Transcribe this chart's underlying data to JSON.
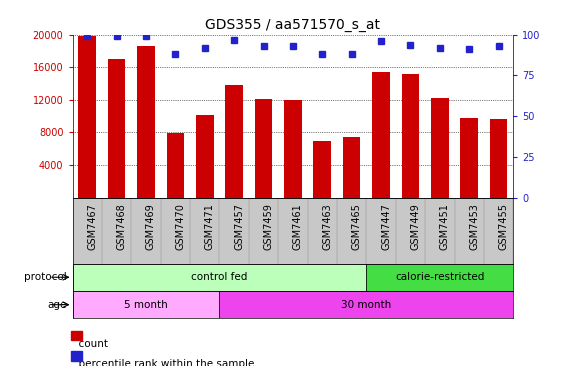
{
  "title": "GDS355 / aa571570_s_at",
  "samples": [
    "GSM7467",
    "GSM7468",
    "GSM7469",
    "GSM7470",
    "GSM7471",
    "GSM7457",
    "GSM7459",
    "GSM7461",
    "GSM7463",
    "GSM7465",
    "GSM7447",
    "GSM7449",
    "GSM7451",
    "GSM7453",
    "GSM7455"
  ],
  "counts": [
    19800,
    17000,
    18600,
    7900,
    10200,
    13800,
    12100,
    12000,
    7000,
    7400,
    15400,
    15200,
    12200,
    9800,
    9700
  ],
  "percentiles": [
    99,
    99,
    99,
    88,
    92,
    97,
    93,
    93,
    88,
    88,
    96,
    94,
    92,
    91,
    93
  ],
  "bar_color": "#cc0000",
  "dot_color": "#2222cc",
  "ylim_left": [
    0,
    20000
  ],
  "ylim_right": [
    0,
    100
  ],
  "yticks_left": [
    4000,
    8000,
    12000,
    16000,
    20000
  ],
  "yticks_right": [
    0,
    25,
    50,
    75,
    100
  ],
  "protocol_spans": [
    {
      "label": "control fed",
      "start": 0,
      "end": 10,
      "color": "#bbffbb"
    },
    {
      "label": "calorie-restricted",
      "start": 10,
      "end": 15,
      "color": "#44dd44"
    }
  ],
  "age_spans": [
    {
      "label": "5 month",
      "start": 0,
      "end": 5,
      "color": "#ffaaff"
    },
    {
      "label": "30 month",
      "start": 5,
      "end": 15,
      "color": "#ee44ee"
    }
  ],
  "protocol_label": "protocol",
  "age_label": "age",
  "legend_count_label": "count",
  "legend_pct_label": "percentile rank within the sample",
  "xtick_bg": "#c8c8c8",
  "plot_bg": "#ffffff",
  "grid_color": "#000000",
  "title_fontsize": 10,
  "tick_fontsize": 7,
  "annotation_fontsize": 7.5,
  "legend_fontsize": 7.5
}
